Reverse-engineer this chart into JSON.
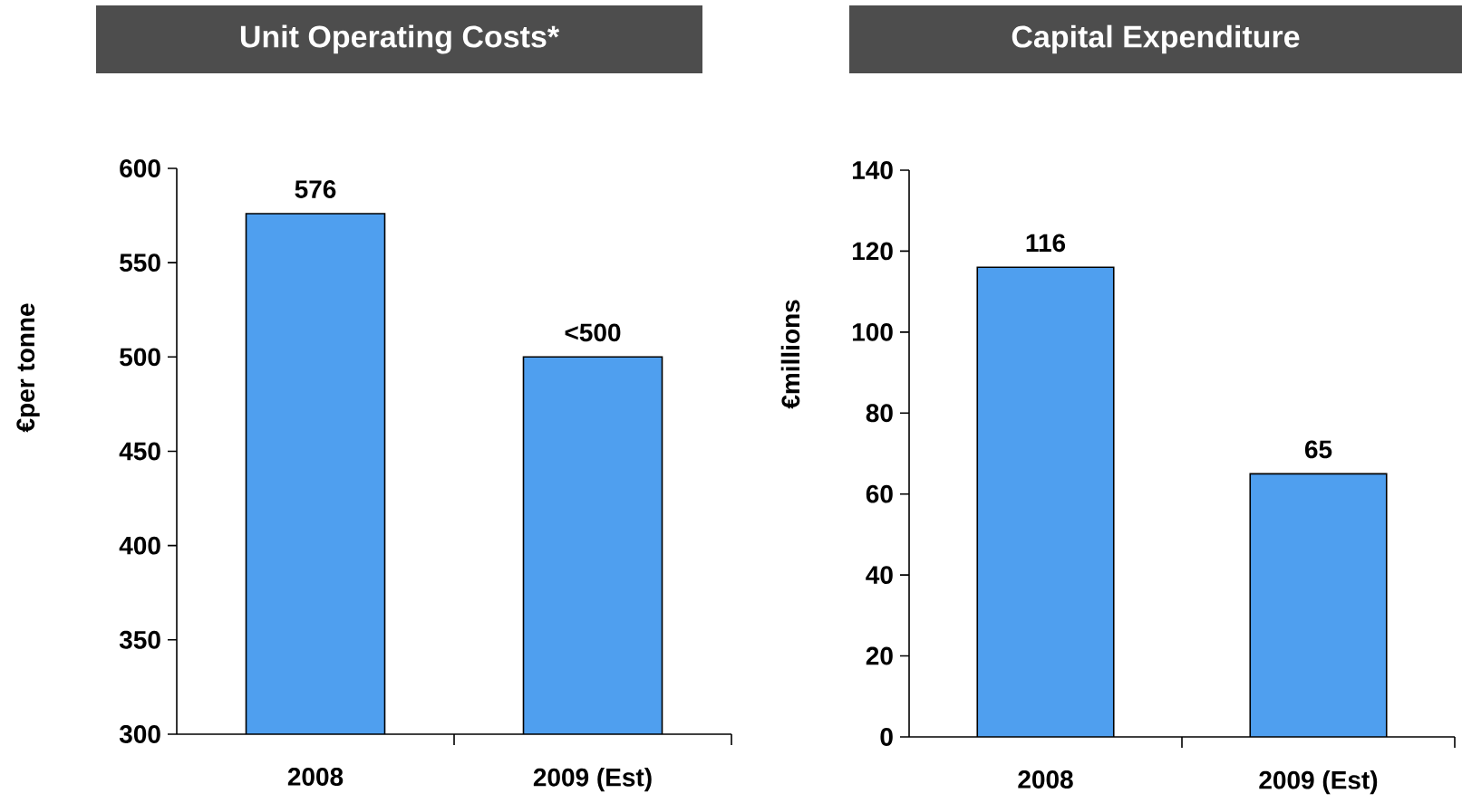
{
  "chart_data": [
    {
      "type": "bar",
      "title": "Unit Operating Costs*",
      "ylabel": "€per tonne",
      "categories": [
        "2008",
        "2009 (Est)"
      ],
      "values": [
        576,
        500
      ],
      "value_labels": [
        "576",
        "<500"
      ],
      "color": "#4f9fef",
      "ylim": [
        300,
        600
      ],
      "yticks": [
        300,
        350,
        400,
        450,
        500,
        550,
        600
      ]
    },
    {
      "type": "bar",
      "title": "Capital Expenditure",
      "ylabel": "€millions",
      "categories": [
        "2008",
        "2009 (Est)"
      ],
      "values": [
        116,
        65
      ],
      "data_labels": true,
      "color": "#4f9fef",
      "ylim": [
        0,
        140
      ],
      "yticks": [
        0,
        20,
        40,
        60,
        80,
        100,
        120,
        140
      ]
    }
  ]
}
